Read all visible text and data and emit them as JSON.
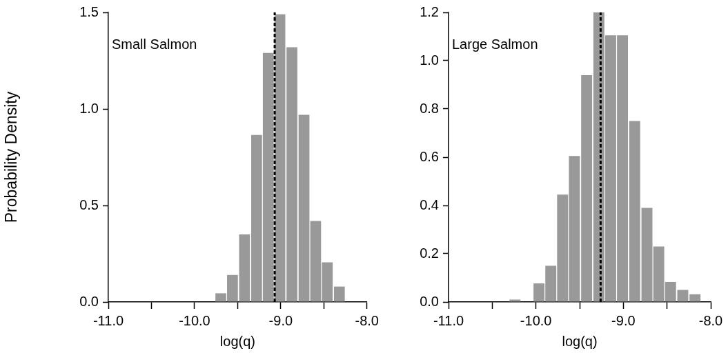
{
  "chart_data": [
    {
      "type": "histogram",
      "annotations": [
        "Small Salmon"
      ],
      "xlabel": "log(q)",
      "ylabel": "Probability Density",
      "bins": [
        -9.76,
        -9.63,
        -9.49,
        -9.35,
        -9.21,
        -9.08,
        -8.94,
        -8.8,
        -8.66,
        -8.53,
        -8.39,
        -8.25
      ],
      "values": [
        0.045,
        0.14,
        0.35,
        0.865,
        1.29,
        1.49,
        1.32,
        0.97,
        0.42,
        0.205,
        0.08
      ],
      "color": "#999999",
      "xlim": [
        -11,
        -8
      ],
      "xticks": [
        {
          "value": -11,
          "label": "-11.0"
        },
        {
          "value": -10.5,
          "label": null
        },
        {
          "value": -10,
          "label": "-10.0"
        },
        {
          "value": -9.5,
          "label": null
        },
        {
          "value": -9,
          "label": "-9.0"
        },
        {
          "value": -8.5,
          "label": null
        },
        {
          "value": -8,
          "label": "-8.0"
        }
      ],
      "ylim": [
        0,
        1.5
      ],
      "yticks": [
        {
          "value": 0,
          "label": "0.0"
        },
        {
          "value": 0.5,
          "label": "0.5"
        },
        {
          "value": 1,
          "label": "1.0"
        },
        {
          "value": 1.5,
          "label": "1.5"
        }
      ],
      "ref_lines": [
        {
          "axis": "x",
          "value": -9.07,
          "color": "#000000",
          "line_style": "dashed"
        }
      ],
      "grid": false,
      "legend": false
    },
    {
      "type": "histogram",
      "annotations": [
        "Large Salmon"
      ],
      "xlabel": "log(q)",
      "bins": [
        -10.31,
        -10.17,
        -10.03,
        -9.9,
        -9.76,
        -9.63,
        -9.49,
        -9.35,
        -9.21,
        -9.08,
        -8.94,
        -8.8,
        -8.66,
        -8.53,
        -8.39,
        -8.25,
        -8.11
      ],
      "values": [
        0.01,
        0,
        0.077,
        0.15,
        0.445,
        0.605,
        0.94,
        1.2,
        1.105,
        1.105,
        0.75,
        0.39,
        0.23,
        0.083,
        0.05,
        0.032
      ],
      "color": "#999999",
      "xlim": [
        -11,
        -8
      ],
      "xticks": [
        {
          "value": -11,
          "label": "-11.0"
        },
        {
          "value": -10.5,
          "label": null
        },
        {
          "value": -10,
          "label": "-10.0"
        },
        {
          "value": -9.5,
          "label": null
        },
        {
          "value": -9,
          "label": "-9.0"
        },
        {
          "value": -8.5,
          "label": null
        },
        {
          "value": -8,
          "label": "-8.0"
        }
      ],
      "ylim": [
        0,
        1.2
      ],
      "yticks": [
        {
          "value": 0,
          "label": "0.0"
        },
        {
          "value": 0.2,
          "label": "0.2"
        },
        {
          "value": 0.4,
          "label": "0.4"
        },
        {
          "value": 0.6,
          "label": "0.6"
        },
        {
          "value": 0.8,
          "label": "0.8"
        },
        {
          "value": 1,
          "label": "1.0"
        },
        {
          "value": 1.2,
          "label": "1.2"
        }
      ],
      "ref_lines": [
        {
          "axis": "x",
          "value": -9.26,
          "color": "#000000",
          "line_style": "dashed"
        }
      ],
      "grid": false,
      "legend": false
    }
  ]
}
